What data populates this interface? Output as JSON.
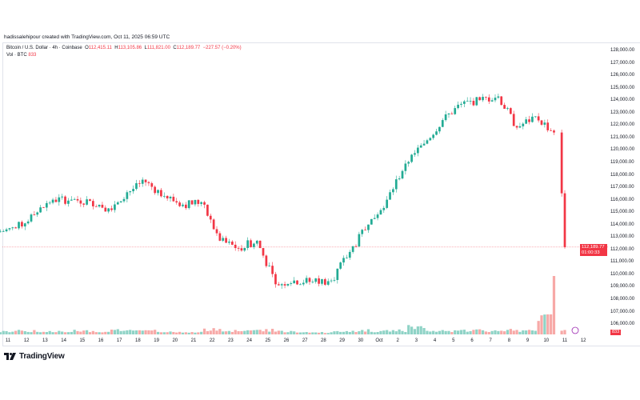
{
  "credit": "hadissalehipour created with TradingView.com, Oct 11, 2025 06:59 UTC",
  "legend": {
    "symbol": "Bitcoin / U.S. Dollar · 4h · Coinbase",
    "o_label": "O",
    "o": "112,415.11",
    "h_label": "H",
    "h": "113,105.86",
    "l_label": "L",
    "l": "111,821.00",
    "c_label": "C",
    "c": "112,189.77",
    "change": "−227.57 (−0.20%)",
    "vol_label": "Vol · BTC",
    "vol": "833"
  },
  "current_price": {
    "price": "112,189.77",
    "countdown": "01:00:33"
  },
  "colors": {
    "up": "#22ab94",
    "down": "#f23645",
    "up_vol": "#8fd3c6",
    "down_vol": "#f7a9a7"
  },
  "logo": "TradingView",
  "chart_data": {
    "type": "candlestick",
    "timeframe": "4h",
    "y_ticks": [
      "128,000.00",
      "127,000.00",
      "126,000.00",
      "125,000.00",
      "124,000.00",
      "123,000.00",
      "122,000.00",
      "121,000.00",
      "120,000.00",
      "119,000.00",
      "118,000.00",
      "117,000.00",
      "116,000.00",
      "115,000.00",
      "114,000.00",
      "113,000.00",
      "112,000.00",
      "111,000.00",
      "110,000.00",
      "109,000.00",
      "108,000.00",
      "107,000.00",
      "106,000.00"
    ],
    "y_range": [
      106000,
      128000
    ],
    "x_ticks": [
      "11",
      "12",
      "13",
      "14",
      "15",
      "16",
      "17",
      "18",
      "19",
      "20",
      "21",
      "22",
      "23",
      "24",
      "25",
      "26",
      "27",
      "28",
      "29",
      "30",
      "Oct",
      "2",
      "3",
      "4",
      "5",
      "6",
      "7",
      "8",
      "9",
      "10",
      "11",
      "12"
    ],
    "daily_closes": [
      113700,
      114800,
      116000,
      116000,
      115900,
      115300,
      116600,
      117400,
      116300,
      115600,
      115800,
      112700,
      112100,
      112700,
      109200,
      109500,
      109400,
      109500,
      111800,
      114000,
      116000,
      118900,
      120500,
      122400,
      123700,
      124000,
      124300,
      121800,
      122700,
      121400,
      112189
    ],
    "daily_volume_rel": [
      0.3,
      0.4,
      0.3,
      0.3,
      0.4,
      0.3,
      0.5,
      0.5,
      0.4,
      0.3,
      0.2,
      0.6,
      0.4,
      0.5,
      0.6,
      0.4,
      0.2,
      0.2,
      0.3,
      0.5,
      0.4,
      0.5,
      0.9,
      0.5,
      0.4,
      0.5,
      0.5,
      0.5,
      0.4,
      2.5,
      0.5
    ]
  }
}
